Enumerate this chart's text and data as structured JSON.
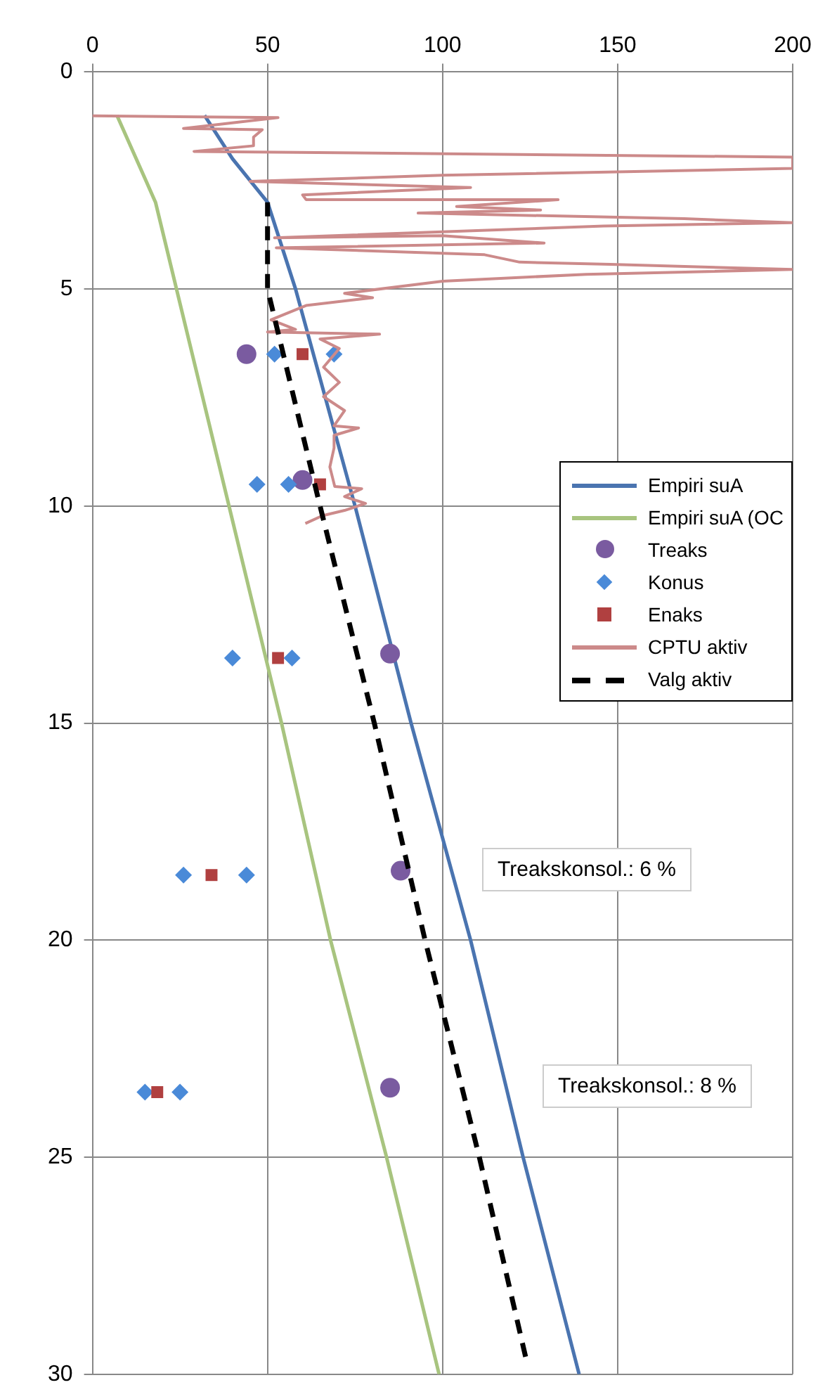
{
  "chart_data": {
    "type": "line",
    "xlim": [
      0,
      200
    ],
    "xticks": [
      0,
      50,
      100,
      150,
      200
    ],
    "ylim": [
      30,
      0
    ],
    "yticks": [
      0,
      5,
      10,
      15,
      20,
      25,
      30
    ],
    "grid": true,
    "legend": "right",
    "annotations": [
      "Treakskonsol.: 6 %",
      "Treakskonsol.: 8 %"
    ],
    "series": [
      {
        "name": "Empiri suA",
        "color": "#4a74b0",
        "marker": "none",
        "line_style": "solid",
        "x": [
          32,
          40,
          50,
          58,
          75,
          91,
          108,
          123,
          139
        ],
        "values": [
          1,
          2,
          3,
          5,
          10,
          15,
          20,
          25,
          30
        ]
      },
      {
        "name": "Empiri suA (OC",
        "color": "#a8c47f",
        "marker": "none",
        "line_style": "solid",
        "x": [
          7,
          18,
          24,
          39,
          54,
          68,
          84,
          99
        ],
        "values": [
          1,
          3,
          5,
          10,
          15,
          20,
          25,
          30
        ]
      },
      {
        "name": "Treaks",
        "type": "scatter",
        "color": "#7a5ba0",
        "marker": "circle",
        "x": [
          44,
          60,
          85,
          88,
          85
        ],
        "values": [
          6.5,
          9.4,
          13.4,
          18.4,
          23.4
        ]
      },
      {
        "name": "Konus",
        "type": "scatter",
        "color": "#4a8ad8",
        "marker": "diamond",
        "x": [
          52,
          69,
          47,
          56,
          40,
          57,
          26,
          44,
          15,
          25
        ],
        "values": [
          6.5,
          6.5,
          9.5,
          9.5,
          13.5,
          13.5,
          18.5,
          18.5,
          23.5,
          23.5
        ]
      },
      {
        "name": "Enaks",
        "type": "scatter",
        "color": "#b04040",
        "marker": "square",
        "x": [
          60,
          65,
          53,
          34,
          18.5
        ],
        "values": [
          6.5,
          9.5,
          13.5,
          18.5,
          23.5
        ]
      },
      {
        "name": "CPTU aktiv",
        "color": "#cc8a8a",
        "marker": "none",
        "line_style": "solid",
        "x": [
          0,
          53,
          26,
          48.5,
          46,
          46,
          29,
          200,
          200,
          100,
          45,
          108,
          60,
          61,
          133,
          104,
          128,
          93,
          169,
          200,
          146,
          52,
          100,
          129,
          52.5,
          112,
          122,
          148,
          200,
          141,
          100,
          72,
          80,
          61,
          51,
          58,
          50,
          82,
          65,
          70.5,
          66,
          70.5,
          66,
          72,
          69,
          76,
          69,
          69,
          67.8,
          69.2,
          76.9,
          72,
          78,
          72,
          65.7,
          60.8
        ],
        "values": [
          1.01,
          1.05,
          1.3,
          1.33,
          1.5,
          1.7,
          1.83,
          1.96,
          2.22,
          2.38,
          2.52,
          2.66,
          2.83,
          2.94,
          2.94,
          3.1,
          3.18,
          3.25,
          3.38,
          3.47,
          3.55,
          3.82,
          3.77,
          3.94,
          4.05,
          4.21,
          4.38,
          4.43,
          4.55,
          4.66,
          4.82,
          5.1,
          5.2,
          5.38,
          5.71,
          5.93,
          5.99,
          6.04,
          6.15,
          6.37,
          6.8,
          7.15,
          7.48,
          7.8,
          8.15,
          8.2,
          8.37,
          8.66,
          9.1,
          9.55,
          9.6,
          9.78,
          9.94,
          10.1,
          10.22,
          10.4
        ]
      },
      {
        "name": "Valg aktiv",
        "color": "#000000",
        "marker": "none",
        "line_style": "dashed",
        "x": [
          50,
          50,
          65,
          80.5,
          95,
          110.5,
          124
        ],
        "values": [
          3,
          5,
          10,
          15,
          20,
          25,
          29.7
        ]
      }
    ]
  }
}
